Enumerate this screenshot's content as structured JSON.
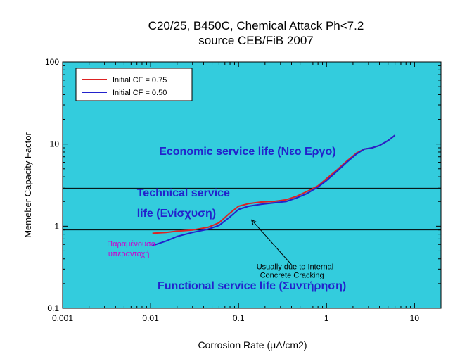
{
  "chart_data": {
    "type": "line",
    "title": "C20/25, B450C, Chemical Attack Ph<7.2",
    "subtitle": "source CEB/FiB 2007",
    "xlabel": "Corrosion Rate (μA/cm2)",
    "ylabel": "Memeber Capacity Factor",
    "x_scale": "log",
    "y_scale": "log",
    "xlim": [
      0.001,
      20
    ],
    "ylim": [
      0.1,
      100
    ],
    "x_ticks": [
      {
        "value": 0.001,
        "label": "0.001"
      },
      {
        "value": 0.01,
        "label": "0.01"
      },
      {
        "value": 0.1,
        "label": "0.1"
      },
      {
        "value": 1,
        "label": "1"
      },
      {
        "value": 10,
        "label": "10"
      }
    ],
    "y_ticks": [
      {
        "value": 0.1,
        "label": "0.1"
      },
      {
        "value": 1,
        "label": "1"
      },
      {
        "value": 10,
        "label": "10"
      },
      {
        "value": 100,
        "label": "100"
      }
    ],
    "grid": false,
    "plot_background": "#33ccdd",
    "legend_position": "top-left",
    "series": [
      {
        "name": "Initial CF = 0.75",
        "color": "#dd2222",
        "points": [
          [
            0.0105,
            0.82
          ],
          [
            0.015,
            0.84
          ],
          [
            0.02,
            0.87
          ],
          [
            0.03,
            0.9
          ],
          [
            0.045,
            0.97
          ],
          [
            0.06,
            1.1
          ],
          [
            0.08,
            1.45
          ],
          [
            0.1,
            1.75
          ],
          [
            0.13,
            1.88
          ],
          [
            0.18,
            1.97
          ],
          [
            0.25,
            2.0
          ],
          [
            0.35,
            2.1
          ],
          [
            0.45,
            2.3
          ],
          [
            0.6,
            2.65
          ],
          [
            0.8,
            3.1
          ],
          [
            1.0,
            3.8
          ],
          [
            1.3,
            4.8
          ],
          [
            1.7,
            6.2
          ],
          [
            2.2,
            7.8
          ],
          [
            2.7,
            8.7
          ],
          [
            3.3,
            9.0
          ],
          [
            4.0,
            9.6
          ],
          [
            5.0,
            11.0
          ],
          [
            6.0,
            12.8
          ]
        ]
      },
      {
        "name": "Initial CF = 0.50",
        "color": "#2222cc",
        "points": [
          [
            0.0105,
            0.58
          ],
          [
            0.015,
            0.66
          ],
          [
            0.02,
            0.75
          ],
          [
            0.03,
            0.84
          ],
          [
            0.045,
            0.92
          ],
          [
            0.06,
            1.02
          ],
          [
            0.08,
            1.3
          ],
          [
            0.1,
            1.6
          ],
          [
            0.13,
            1.75
          ],
          [
            0.18,
            1.85
          ],
          [
            0.25,
            1.92
          ],
          [
            0.35,
            2.0
          ],
          [
            0.45,
            2.2
          ],
          [
            0.6,
            2.5
          ],
          [
            0.8,
            3.0
          ],
          [
            1.0,
            3.6
          ],
          [
            1.3,
            4.6
          ],
          [
            1.7,
            6.0
          ],
          [
            2.2,
            7.6
          ],
          [
            2.7,
            8.7
          ],
          [
            3.3,
            9.0
          ],
          [
            4.0,
            9.6
          ],
          [
            5.0,
            11.0
          ],
          [
            6.0,
            12.8
          ]
        ]
      }
    ],
    "reference_lines": [
      {
        "y": 2.9,
        "color": "#000000"
      },
      {
        "y": 0.9,
        "color": "#000000"
      }
    ],
    "annotations": [
      {
        "text": "Economic service life (Νεο Εργο)",
        "x": 0.0125,
        "y": 7.4,
        "color": "#2222cc"
      },
      {
        "text": "Technical service",
        "x": 0.007,
        "y": 2.3,
        "color": "#2222cc"
      },
      {
        "text": "life (Ενίσχυση)",
        "x": 0.007,
        "y": 1.3,
        "color": "#2222cc"
      },
      {
        "text": "Functional service life (Συντήρηση)",
        "x": 0.012,
        "y": 0.17,
        "color": "#2222cc"
      },
      {
        "text": "Παραμένουσα",
        "x": 0.0032,
        "y": 0.57,
        "color": "#cc00cc"
      },
      {
        "text": "υπεραντοχή",
        "x": 0.0033,
        "y": 0.43,
        "color": "#cc00cc"
      },
      {
        "text": "Usually due to Internal",
        "x": 0.16,
        "y": 0.3,
        "color": "#000000"
      },
      {
        "text": "Concrete Cracking",
        "x": 0.175,
        "y": 0.235,
        "color": "#000000"
      }
    ],
    "arrow": {
      "from": [
        0.4,
        0.34
      ],
      "to": [
        0.14,
        1.2
      ],
      "color": "#000000"
    }
  }
}
